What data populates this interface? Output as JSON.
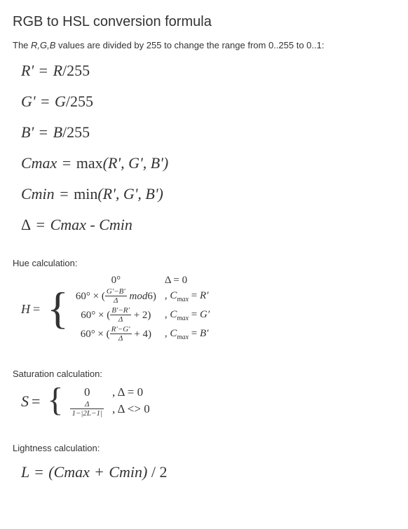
{
  "title": "RGB to HSL conversion formula",
  "intro_prefix": "The ",
  "intro_vars": "R,G,B",
  "intro_suffix": " values are divided by 255 to change the range from 0..255 to 0..1:",
  "formulas": {
    "r": {
      "lhs": "R'",
      "rhs": "R/255"
    },
    "g": {
      "lhs": "G'",
      "rhs": "G/255"
    },
    "b": {
      "lhs": "B'",
      "rhs": "B/255"
    },
    "cmax": {
      "lhs": "Cmax",
      "fn": "max",
      "args": "(R', G', B')"
    },
    "cmin": {
      "lhs": "Cmin",
      "fn": "min",
      "args": "(R', G', B')"
    },
    "delta": {
      "lhs": "Δ",
      "rhs": "Cmax - Cmin"
    }
  },
  "hue": {
    "label": "Hue calculation:",
    "lhs": "H",
    "cases": [
      {
        "expr_html": "0°",
        "cond_html": "Δ = 0"
      },
      {
        "expr_html": "60° × (<span class='frac'><span class='fn-top'>G′−B′</span><span class='fn-bot'>Δ</span></span> <em>mod</em>6)",
        "cond_html": ", <em>C</em><span class='sub'>max</span> = <em>R′</em>"
      },
      {
        "expr_html": "60° × (<span class='frac'><span class='fn-top'>B′−R′</span><span class='fn-bot'>Δ</span></span> + 2)",
        "cond_html": ", <em>C</em><span class='sub'>max</span> = <em>G′</em>"
      },
      {
        "expr_html": "60° × (<span class='frac'><span class='fn-top'>R′−G′</span><span class='fn-bot'>Δ</span></span> + 4)",
        "cond_html": ", <em>C</em><span class='sub'>max</span> = <em>B′</em>"
      }
    ]
  },
  "saturation": {
    "label": "Saturation calculation:",
    "lhs": "S",
    "cases": [
      {
        "expr_html": "0",
        "cond_html": ", Δ = 0"
      },
      {
        "expr_html": "<span class='frac'><span class='fn-top'>Δ</span><span class='fn-bot'>1−|2L−1|</span></span>",
        "cond_html": ", Δ &lt;&gt; 0"
      }
    ]
  },
  "lightness": {
    "label": "Lightness calculation:",
    "formula": "L = (Cmax + Cmin) / 2"
  },
  "style": {
    "background_color": "#ffffff",
    "text_color": "#333333",
    "title_fontsize": 20,
    "body_fontsize": 13,
    "formula_fontsize": 22,
    "formula_font_family": "Times New Roman",
    "body_font_family": "Arial"
  }
}
